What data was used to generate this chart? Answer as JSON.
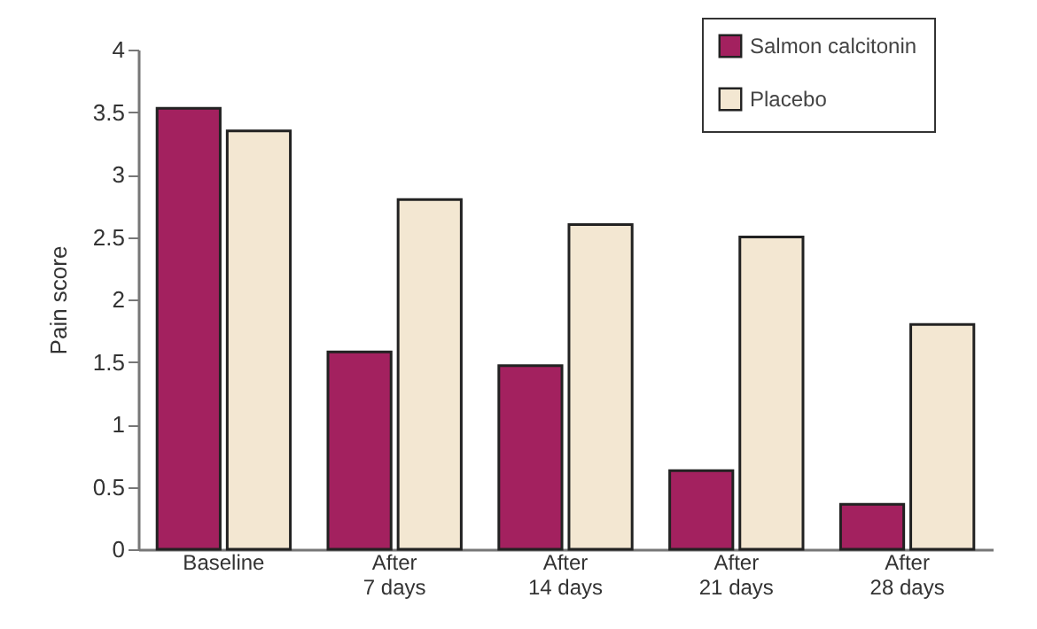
{
  "chart_data": {
    "type": "bar",
    "ylabel": "Pain score",
    "categories": [
      "Baseline",
      "After\n7 days",
      "After\n14 days",
      "After\n21 days",
      "After\n28 days"
    ],
    "series": [
      {
        "name": "Salmon calcitonin",
        "color": "#a3215f",
        "values": [
          3.53,
          1.58,
          1.47,
          0.63,
          0.36
        ]
      },
      {
        "name": "Placebo",
        "color": "#f3e7d2",
        "values": [
          3.35,
          2.8,
          2.6,
          2.5,
          1.8
        ]
      }
    ],
    "ylim": [
      0,
      4
    ],
    "yticks": [
      0,
      0.5,
      1,
      1.5,
      2,
      2.5,
      3,
      3.5,
      4
    ],
    "grid": false,
    "legend": "top right"
  }
}
